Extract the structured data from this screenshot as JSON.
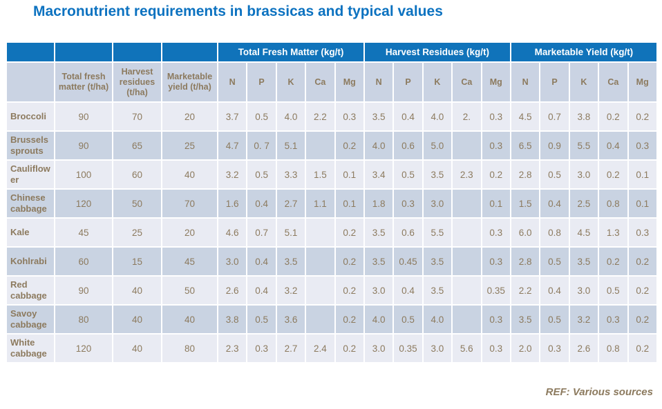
{
  "title": "Macronutrient requirements in brassicas and typical values",
  "footer": {
    "ref": "REF: Various sources"
  },
  "colors": {
    "title": "#0C72C0",
    "group_header_bg": "#1073BA",
    "group_header_text": "#FFFFFF",
    "subheader_bg": "#CAD3E3",
    "row_light_bg": "#E9EBF3",
    "row_dark_bg": "#C9D3E2",
    "text_brown": "#8C7A5E",
    "grid": "#FFFFFF"
  },
  "table": {
    "blank_corner_cells": 4,
    "groups": [
      "Total Fresh Matter (kg/t)",
      "Harvest Residues (kg/t)",
      "Marketable Yield (kg/t)"
    ],
    "area_headers": [
      "Total fresh matter (t/ha)",
      "Harvest residues (t/ha)",
      "Marketable yield (t/ha)"
    ],
    "nutrients": [
      "N",
      "P",
      "K",
      "Ca",
      "Mg"
    ],
    "rows": [
      {
        "crop": "Broccoli",
        "values": [
          "90",
          "70",
          "20",
          "3.7",
          "0.5",
          "4.0",
          "2.2",
          "0.3",
          "3.5",
          "0.4",
          "4.0",
          "2.",
          "0.3",
          "4.5",
          "0.7",
          "3.8",
          "0.2",
          "0.2"
        ]
      },
      {
        "crop": "Brussels sprouts",
        "values": [
          "90",
          "65",
          "25",
          "4.7",
          "0. 7",
          "5.1",
          "",
          "0.2",
          "4.0",
          "0.6",
          "5.0",
          "",
          "0.3",
          "6.5",
          "0.9",
          "5.5",
          "0.4",
          "0.3"
        ]
      },
      {
        "crop": "Cauliflower",
        "values": [
          "100",
          "60",
          "40",
          "3.2",
          "0.5",
          "3.3",
          "1.5",
          "0.1",
          "3.4",
          "0.5",
          "3.5",
          "2.3",
          "0.2",
          "2.8",
          "0.5",
          "3.0",
          "0.2",
          "0.1"
        ]
      },
      {
        "crop": "Chinese cabbage",
        "values": [
          "120",
          "50",
          "70",
          "1.6",
          "0.4",
          "2.7",
          "1.1",
          "0.1",
          "1.8",
          "0.3",
          "3.0",
          "",
          "0.1",
          "1.5",
          "0.4",
          "2.5",
          "0.8",
          "0.1"
        ]
      },
      {
        "crop": "Kale",
        "values": [
          "45",
          "25",
          "20",
          "4.6",
          "0.7",
          "5.1",
          "",
          "0.2",
          "3.5",
          "0.6",
          "5.5",
          "",
          "0.3",
          "6.0",
          "0.8",
          "4.5",
          "1.3",
          "0.3"
        ]
      },
      {
        "crop": "Kohlrabi",
        "values": [
          "60",
          "15",
          "45",
          "3.0",
          "0.4",
          "3.5",
          "",
          "0.2",
          "3.5",
          "0.45",
          "3.5",
          "",
          "0.3",
          "2.8",
          "0.5",
          "3.5",
          "0.2",
          "0.2"
        ]
      },
      {
        "crop": "Red cabbage",
        "values": [
          "90",
          "40",
          "50",
          "2.6",
          "0.4",
          "3.2",
          "",
          "0.2",
          "3.0",
          "0.4",
          "3.5",
          "",
          "0.35",
          "2.2",
          "0.4",
          "3.0",
          "0.5",
          "0.2"
        ]
      },
      {
        "crop": "Savoy cabbage",
        "values": [
          "80",
          "40",
          "40",
          "3.8",
          "0.5",
          "3.6",
          "",
          "0.2",
          "4.0",
          "0.5",
          "4.0",
          "",
          "0.3",
          "3.5",
          "0.5",
          "3.2",
          "0.3",
          "0.2"
        ]
      },
      {
        "crop": "White cabbage",
        "values": [
          "120",
          "40",
          "80",
          "2.3",
          "0.3",
          "2.7",
          "2.4",
          "0.2",
          "3.0",
          "0.35",
          "3.0",
          "5.6",
          "0.3",
          "2.0",
          "0.3",
          "2.6",
          "0.8",
          "0.2"
        ]
      }
    ]
  }
}
